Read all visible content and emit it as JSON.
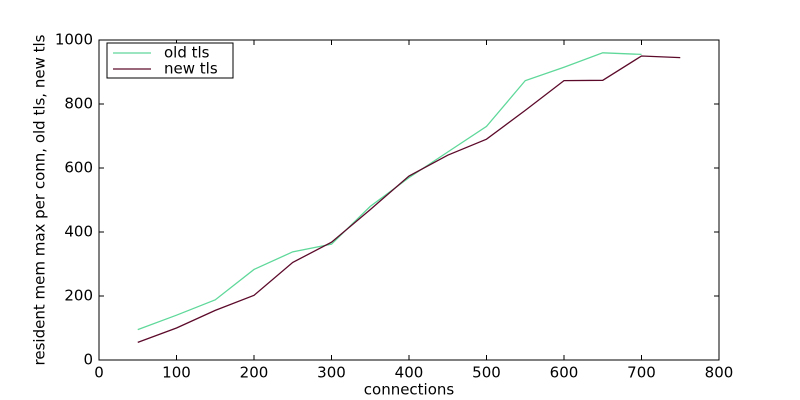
{
  "chart_data": {
    "type": "line",
    "x_label": "connections",
    "y_label": "resident mem max per conn, old tls, new tls",
    "x": [
      50,
      100,
      150,
      200,
      250,
      300,
      350,
      400,
      450,
      500,
      550,
      600,
      650,
      700,
      750
    ],
    "series": [
      {
        "name": "old tls",
        "color": "#5fd89a",
        "values": [
          95,
          140,
          188,
          283,
          338,
          362,
          480,
          570,
          650,
          730,
          873,
          915,
          960,
          955,
          null
        ]
      },
      {
        "name": "new tls",
        "color": "#5c0a2a",
        "values": [
          55,
          100,
          155,
          202,
          305,
          368,
          470,
          575,
          640,
          690,
          780,
          873,
          874,
          950,
          945
        ]
      }
    ],
    "xlim": [
      0,
      800
    ],
    "xticks": [
      0,
      100,
      200,
      300,
      400,
      500,
      600,
      700,
      800
    ],
    "ylim": [
      0,
      1000
    ],
    "yticks": [
      0,
      200,
      400,
      600,
      800,
      1000
    ],
    "grid": false,
    "legend": "upper left"
  }
}
